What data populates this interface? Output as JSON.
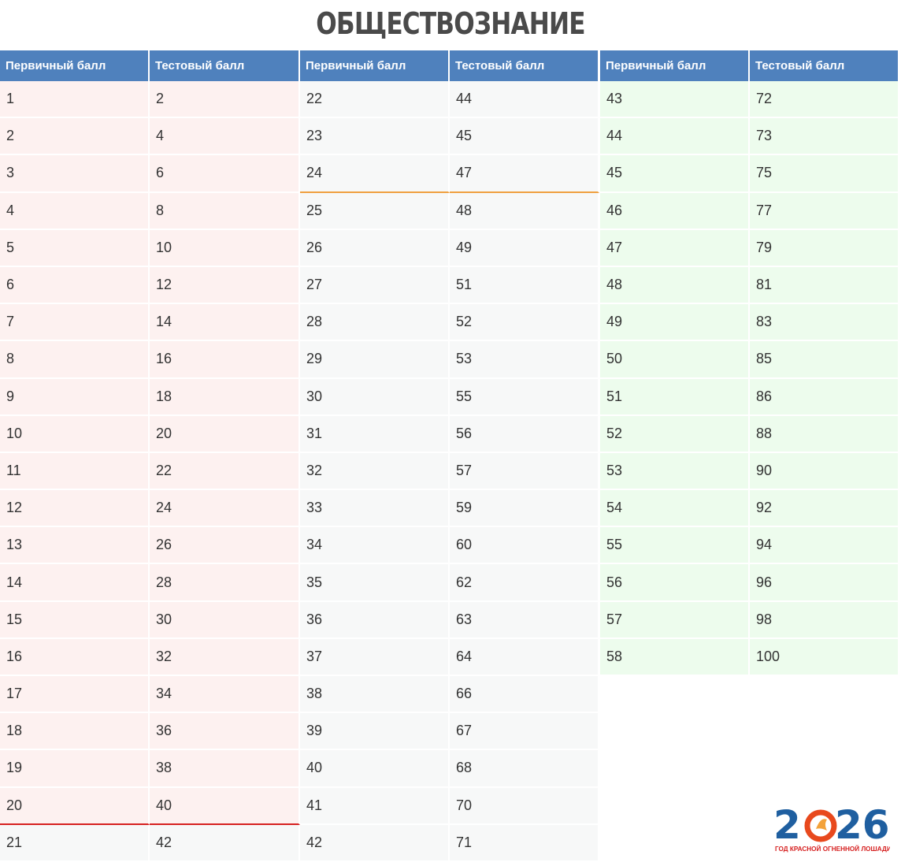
{
  "title": "ОБЩЕСТВОЗНАНИЕ",
  "headers": {
    "primary": "Первичный балл",
    "test": "Тестовый балл"
  },
  "rows_1": [
    [
      "1",
      "2"
    ],
    [
      "2",
      "4"
    ],
    [
      "3",
      "6"
    ],
    [
      "4",
      "8"
    ],
    [
      "5",
      "10"
    ],
    [
      "6",
      "12"
    ],
    [
      "7",
      "14"
    ],
    [
      "8",
      "16"
    ],
    [
      "9",
      "18"
    ],
    [
      "10",
      "20"
    ],
    [
      "11",
      "22"
    ],
    [
      "12",
      "24"
    ],
    [
      "13",
      "26"
    ],
    [
      "14",
      "28"
    ],
    [
      "15",
      "30"
    ],
    [
      "16",
      "32"
    ],
    [
      "17",
      "34"
    ],
    [
      "18",
      "36"
    ],
    [
      "19",
      "38"
    ],
    [
      "20",
      "40"
    ],
    [
      "21",
      "42"
    ]
  ],
  "rows_2": [
    [
      "22",
      "44"
    ],
    [
      "23",
      "45"
    ],
    [
      "24",
      "47"
    ],
    [
      "25",
      "48"
    ],
    [
      "26",
      "49"
    ],
    [
      "27",
      "51"
    ],
    [
      "28",
      "52"
    ],
    [
      "29",
      "53"
    ],
    [
      "30",
      "55"
    ],
    [
      "31",
      "56"
    ],
    [
      "32",
      "57"
    ],
    [
      "33",
      "59"
    ],
    [
      "34",
      "60"
    ],
    [
      "35",
      "62"
    ],
    [
      "36",
      "63"
    ],
    [
      "37",
      "64"
    ],
    [
      "38",
      "66"
    ],
    [
      "39",
      "67"
    ],
    [
      "40",
      "68"
    ],
    [
      "41",
      "70"
    ],
    [
      "42",
      "71"
    ]
  ],
  "rows_3": [
    [
      "43",
      "72"
    ],
    [
      "44",
      "73"
    ],
    [
      "45",
      "75"
    ],
    [
      "46",
      "77"
    ],
    [
      "47",
      "79"
    ],
    [
      "48",
      "81"
    ],
    [
      "49",
      "83"
    ],
    [
      "50",
      "85"
    ],
    [
      "51",
      "86"
    ],
    [
      "52",
      "88"
    ],
    [
      "53",
      "90"
    ],
    [
      "54",
      "92"
    ],
    [
      "55",
      "94"
    ],
    [
      "56",
      "96"
    ],
    [
      "57",
      "98"
    ],
    [
      "58",
      "100"
    ]
  ],
  "logo": {
    "year": "2026",
    "caption": "ГОД КРАСНОЙ ОГНЕННОЙ ЛОШАДИ"
  },
  "colors": {
    "header_bg": "#4f81bd",
    "failing_bg": "#fdf1f0",
    "middle_bg": "#f7f8f8",
    "top_bg": "#edfced",
    "pass_line": "#d62020",
    "threshold_line": "#f0a040"
  }
}
